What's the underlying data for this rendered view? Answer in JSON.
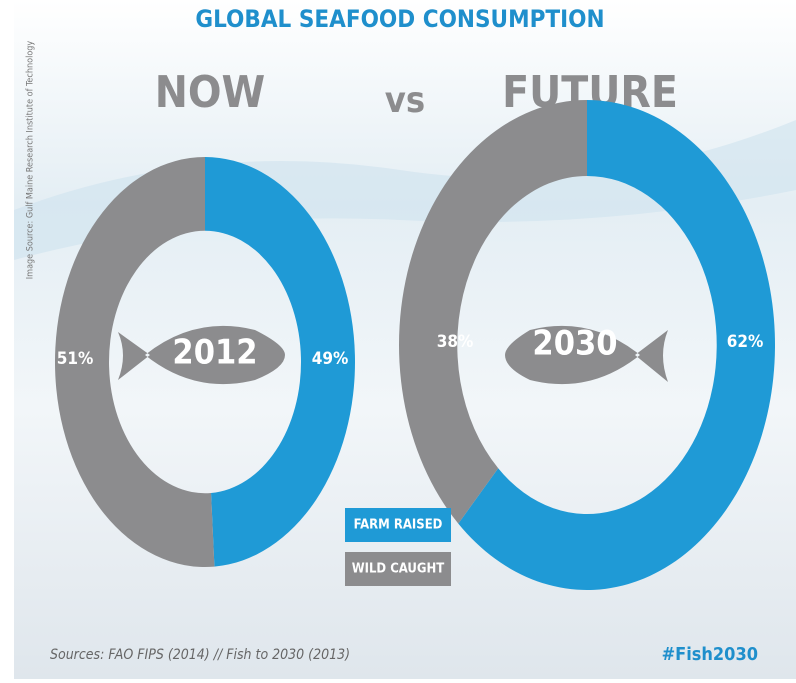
{
  "title": "GLOBAL SEAFOOD CONSUMPTION",
  "headings": [
    "NOW",
    "vs",
    "FUTURE"
  ],
  "legend": [
    {
      "name": "FARM RAISED",
      "color": "#1f9ad6"
    },
    {
      "name": "WILD CAUGHT",
      "color": "#8c8c8e"
    }
  ],
  "side_note": "Image Source: Gulf Maine Research Institute of Technology",
  "sources": "Sources: FAO FIPS (2014) // Fish to 2030 (2013)",
  "hashtag": "#Fish2030",
  "chart_data": [
    {
      "type": "donut",
      "center_label": "2012",
      "values": [
        49,
        51
      ],
      "value_labels": [
        "49%",
        "51%"
      ]
    },
    {
      "type": "donut",
      "center_label": "2030",
      "values": [
        62,
        38
      ],
      "value_labels": [
        "62%",
        "38%"
      ]
    }
  ]
}
